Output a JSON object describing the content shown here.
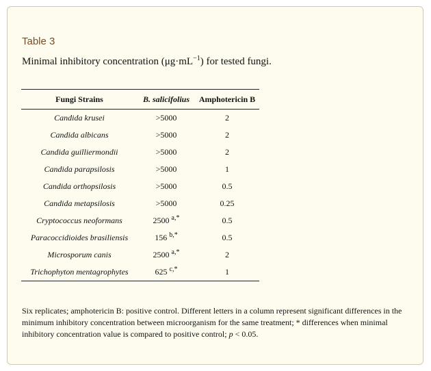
{
  "table_label": "Table 3",
  "caption": {
    "before": "Minimal inhibitory concentration (μg·mL",
    "sup": "−1",
    "after": ") for tested fungi."
  },
  "table": {
    "headers": [
      "Fungi Strains",
      "B. salicifolius",
      "Amphotericin B"
    ],
    "rows": [
      {
        "strain": "Candida krusei",
        "bs": ">5000",
        "bs_sup": "",
        "amp": "2"
      },
      {
        "strain": "Candida albicans",
        "bs": ">5000",
        "bs_sup": "",
        "amp": "2"
      },
      {
        "strain": "Candida guilliermondii",
        "bs": ">5000",
        "bs_sup": "",
        "amp": "2"
      },
      {
        "strain": "Candida parapsilosis",
        "bs": ">5000",
        "bs_sup": "",
        "amp": "1"
      },
      {
        "strain": "Candida orthopsilosis",
        "bs": ">5000",
        "bs_sup": "",
        "amp": "0.5"
      },
      {
        "strain": "Candida metapsilosis",
        "bs": ">5000",
        "bs_sup": "",
        "amp": "0.25"
      },
      {
        "strain": "Cryptococcus neoformans",
        "bs": "2500",
        "bs_sup": "a,*",
        "amp": "0.5"
      },
      {
        "strain": "Paracoccidioides brasiliensis",
        "bs": "156",
        "bs_sup": "b,*",
        "amp": "0.5"
      },
      {
        "strain": "Microsporum canis",
        "bs": "2500",
        "bs_sup": "a,*",
        "amp": "2"
      },
      {
        "strain": "Trichophyton mentagrophytes",
        "bs": "625",
        "bs_sup": "c,*",
        "amp": "1"
      }
    ]
  },
  "footnote": {
    "text": "Six replicates; amphotericin B: positive control. Different letters in a column represent significant differences in the minimum inhibitory concentration between microorganism for the same treatment; * differences when minimal inhibitory concentration value is compared to positive control; ",
    "p_symbol": "p",
    "p_value": " < 0.05."
  }
}
